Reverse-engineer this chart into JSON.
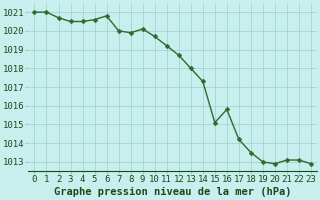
{
  "x": [
    0,
    1,
    2,
    3,
    4,
    5,
    6,
    7,
    8,
    9,
    10,
    11,
    12,
    13,
    14,
    15,
    16,
    17,
    18,
    19,
    20,
    21,
    22,
    23
  ],
  "y": [
    1021.0,
    1021.0,
    1020.7,
    1020.5,
    1020.5,
    1020.6,
    1020.8,
    1020.0,
    1019.9,
    1020.1,
    1019.7,
    1019.2,
    1018.7,
    1018.0,
    1017.3,
    1015.1,
    1015.8,
    1014.2,
    1013.5,
    1013.0,
    1012.9,
    1013.1,
    1013.1,
    1012.9
  ],
  "line_color": "#2d6a2d",
  "marker_color": "#2d6a2d",
  "background_color": "#c8eeee",
  "grid_color": "#9ecece",
  "xlabel": "Graphe pression niveau de la mer (hPa)",
  "xlabel_color": "#1a4a1a",
  "xlabel_fontsize": 7.5,
  "tick_fontsize": 6.5,
  "ylim": [
    1012.5,
    1021.5
  ],
  "yticks": [
    1013,
    1014,
    1015,
    1016,
    1017,
    1018,
    1019,
    1020,
    1021
  ],
  "xticks": [
    0,
    1,
    2,
    3,
    4,
    5,
    6,
    7,
    8,
    9,
    10,
    11,
    12,
    13,
    14,
    15,
    16,
    17,
    18,
    19,
    20,
    21,
    22,
    23
  ],
  "line_width": 1.0,
  "marker_size": 2.5
}
